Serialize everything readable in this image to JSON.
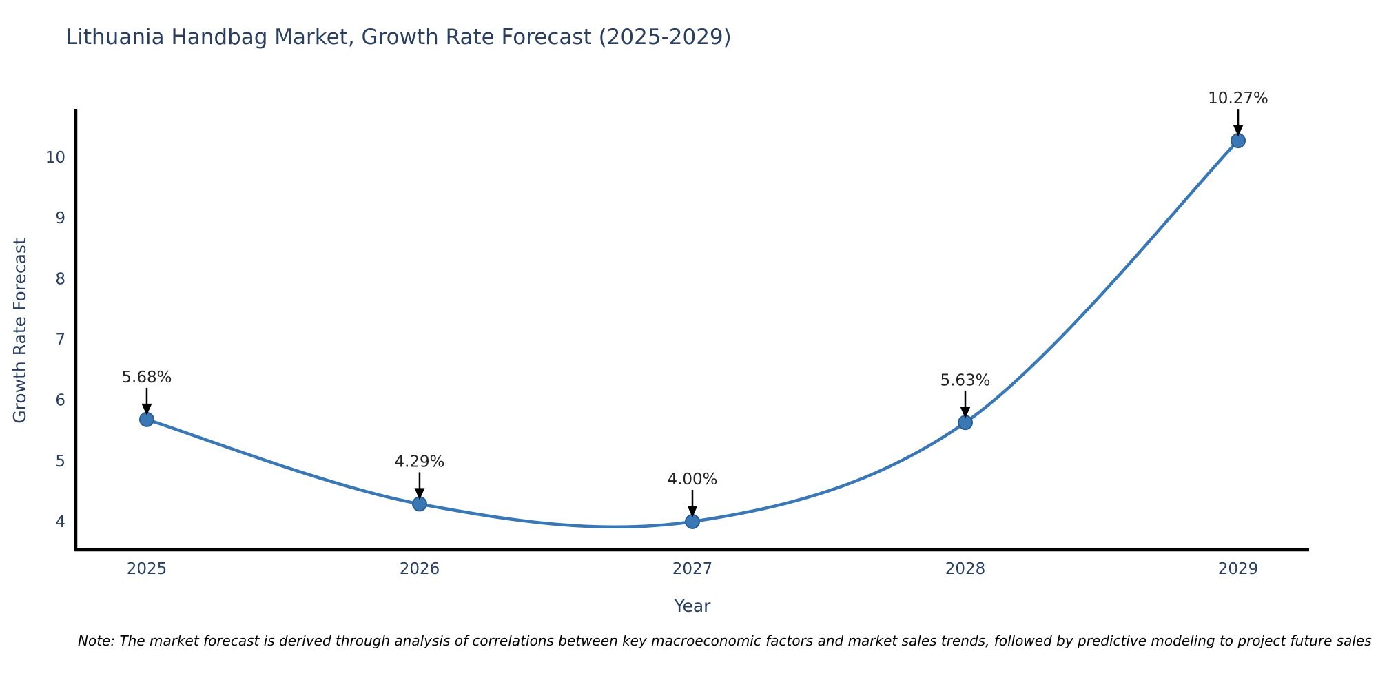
{
  "title": "Lithuania Handbag Market, Growth Rate Forecast (2025-2029)",
  "note": "Note: The market forecast is derived through analysis of correlations between key macroeconomic factors and market sales trends, followed by predictive modeling to project future sales",
  "chart_data": {
    "type": "line",
    "title": "Lithuania Handbag Market, Growth Rate Forecast (2025-2029)",
    "xlabel": "Year",
    "ylabel": "Growth Rate Forecast",
    "categories": [
      "2025",
      "2026",
      "2027",
      "2028",
      "2029"
    ],
    "series": [
      {
        "name": "Growth Rate Forecast",
        "values": [
          5.68,
          4.29,
          4.0,
          5.63,
          10.27
        ],
        "point_labels": [
          "5.68%",
          "4.29%",
          "4.00%",
          "5.63%",
          "10.27%"
        ]
      }
    ],
    "yticks": [
      4,
      5,
      6,
      7,
      8,
      9,
      10
    ],
    "ylim": [
      3.535,
      10.77
    ],
    "xlim": [
      -0.26,
      4.26
    ],
    "grid": false,
    "legend": "none",
    "line_shape": "spline",
    "colors": {
      "line": "#3978b5",
      "marker_fill": "#3978b5",
      "marker_edge": "#2a5f96",
      "axis_line": "#000000",
      "axis_text": "#2a3f5f",
      "annotation_text": "#222222",
      "arrow": "#000000",
      "title": "#2a3f5f",
      "note": "#000000"
    }
  }
}
